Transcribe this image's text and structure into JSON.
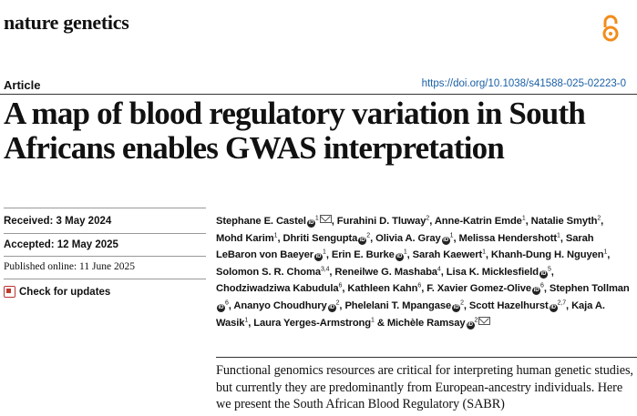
{
  "journal": {
    "name": "nature genetics",
    "open_access_icon": "open-access-lock-icon"
  },
  "header": {
    "article_type": "Article",
    "doi": "https://doi.org/10.1038/s41588-025-02223-0"
  },
  "title": "A map of blood regulatory variation in South Africans enables GWAS interpretation",
  "meta": {
    "received": "Received: 3 May 2024",
    "accepted": "Accepted: 12 May 2025",
    "published": "Published online: 11 June 2025",
    "check_updates": "Check for updates"
  },
  "authors": [
    {
      "name": "Stephane E. Castel",
      "orcid": true,
      "sup": "1",
      "mail": true
    },
    {
      "name": "Furahini D. Tluway",
      "sup": "2"
    },
    {
      "name": "Anne-Katrin Emde",
      "sup": "1"
    },
    {
      "name": "Natalie Smyth",
      "sup": "2"
    },
    {
      "name": "Mohd Karim",
      "sup": "1"
    },
    {
      "name": "Dhriti Sengupta",
      "orcid": true,
      "sup": "2"
    },
    {
      "name": "Olivia A. Gray",
      "orcid": true,
      "sup": "1"
    },
    {
      "name": "Melissa Hendershott",
      "sup": "1"
    },
    {
      "name": "Sarah LeBaron von Baeyer",
      "orcid": true,
      "sup": "1"
    },
    {
      "name": "Erin E. Burke",
      "orcid": true,
      "sup": "1"
    },
    {
      "name": "Sarah Kaewert",
      "sup": "1"
    },
    {
      "name": "Khanh-Dung H. Nguyen",
      "sup": "1"
    },
    {
      "name": "Solomon S. R. Choma",
      "sup": "3,4"
    },
    {
      "name": "Reneilwe G. Mashaba",
      "sup": "4"
    },
    {
      "name": "Lisa K. Micklesfield",
      "orcid": true,
      "sup": "5"
    },
    {
      "name": "Chodziwadziwa Kabudula",
      "sup": "6"
    },
    {
      "name": "Kathleen Kahn",
      "sup": "6"
    },
    {
      "name": "F. Xavier Gomez-Olive",
      "orcid": true,
      "sup": "6"
    },
    {
      "name": "Stephen Tollman",
      "orcid": true,
      "sup": "6"
    },
    {
      "name": "Ananyo Choudhury",
      "orcid": true,
      "sup": "2"
    },
    {
      "name": "Phelelani T. Mpangase",
      "orcid": true,
      "sup": "2"
    },
    {
      "name": "Scott Hazelhurst",
      "orcid": true,
      "sup": "2,7"
    },
    {
      "name": "Kaja A. Wasik",
      "sup": "1"
    },
    {
      "name": "Laura Yerges-Armstrong",
      "sup": "1"
    },
    {
      "name": "Michèle Ramsay",
      "orcid": true,
      "sup": "2",
      "mail": true,
      "prefix": "& "
    }
  ],
  "abstract": "Functional genomics resources are critical for interpreting human genetic studies, but currently they are predominantly from European-ancestry individuals. Here we present the South African Blood Regulatory (SABR)"
}
